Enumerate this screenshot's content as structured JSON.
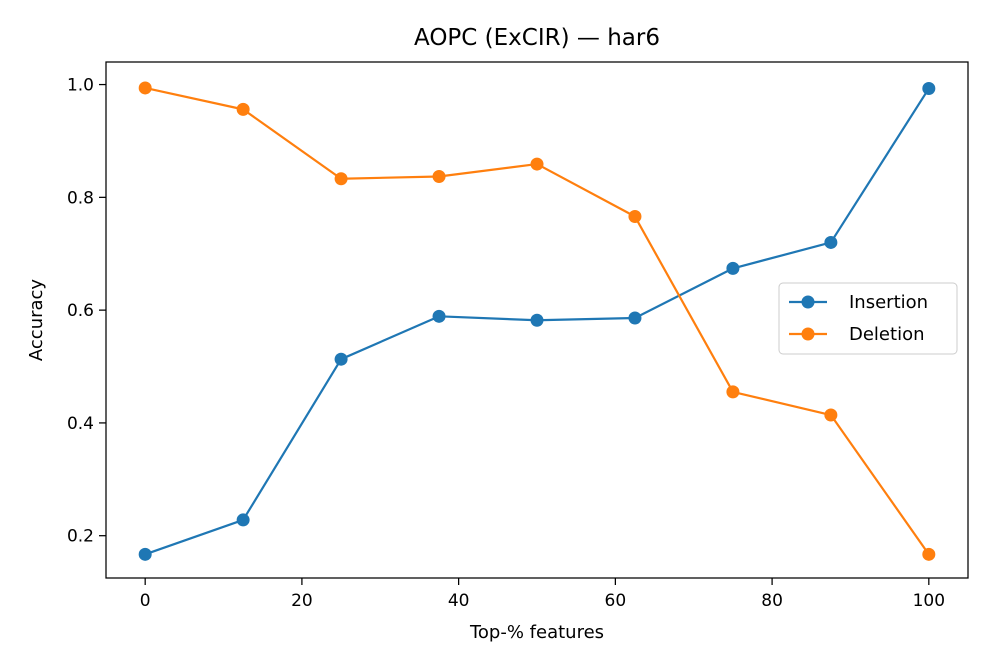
{
  "chart_data": {
    "type": "line",
    "title": "AOPC (ExCIR) — har6",
    "xlabel": "Top-% features",
    "ylabel": "Accuracy",
    "xlim": [
      -5,
      105
    ],
    "ylim": [
      0.125,
      1.04
    ],
    "x_ticks": [
      0,
      20,
      40,
      60,
      80,
      100
    ],
    "x_tick_labels": [
      "0",
      "20",
      "40",
      "60",
      "80",
      "100"
    ],
    "y_ticks": [
      0.2,
      0.4,
      0.6,
      0.8,
      1.0
    ],
    "y_tick_labels": [
      "0.2",
      "0.4",
      "0.6",
      "0.8",
      "1.0"
    ],
    "x": [
      0,
      12.5,
      25,
      37.5,
      50,
      62.5,
      75,
      87.5,
      100
    ],
    "grid": false,
    "legend_position": "center-right",
    "series": [
      {
        "name": "Insertion",
        "color": "#1f77b4",
        "marker": "circle",
        "values": [
          0.167,
          0.228,
          0.513,
          0.589,
          0.582,
          0.586,
          0.674,
          0.72,
          0.993
        ]
      },
      {
        "name": "Deletion",
        "color": "#ff7f0e",
        "marker": "circle",
        "values": [
          0.994,
          0.956,
          0.833,
          0.837,
          0.859,
          0.766,
          0.455,
          0.414,
          0.167
        ]
      }
    ]
  }
}
